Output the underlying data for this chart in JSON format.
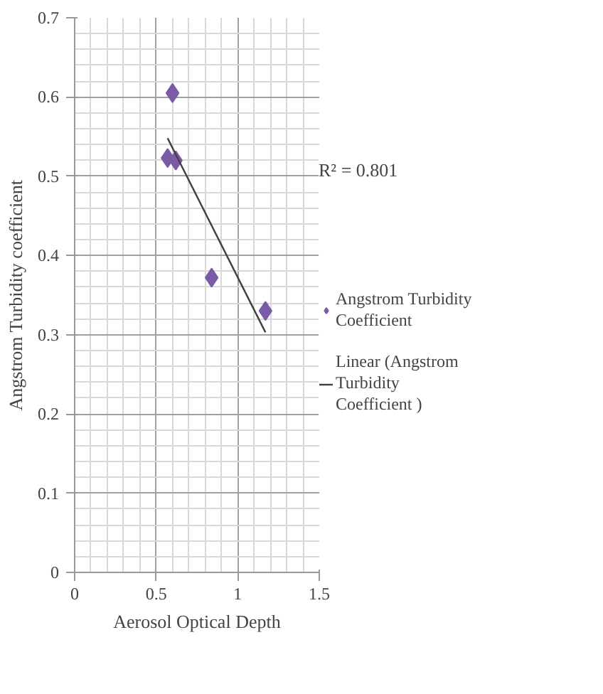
{
  "chart_data": {
    "type": "scatter",
    "xlabel": "Aerosol Optical Depth",
    "ylabel": "Angstrom Turbidity coefficient",
    "xlim": [
      0,
      1.5
    ],
    "xticks": [
      0,
      0.5,
      1,
      1.5
    ],
    "ylim": [
      0,
      0.7
    ],
    "yticks": [
      0,
      0.1,
      0.2,
      0.3,
      0.4,
      0.5,
      0.6,
      0.7
    ],
    "grid": true,
    "legend": "right",
    "annotations": [
      "R² = 0.801"
    ],
    "series": [
      {
        "name": "Angstrom Turbidity Coefficient",
        "color": "#7b5aa6",
        "marker": "diamond",
        "x": [
          0.6,
          0.57,
          0.62,
          0.84,
          1.17
        ],
        "values": [
          0.605,
          0.523,
          0.52,
          0.372,
          0.33
        ]
      },
      {
        "name": "Linear (Angstrom Turbidity Coefficient )",
        "type": "line",
        "color": "#404040",
        "x": [
          0.57,
          1.17
        ],
        "values": [
          0.548,
          0.303
        ]
      }
    ]
  }
}
